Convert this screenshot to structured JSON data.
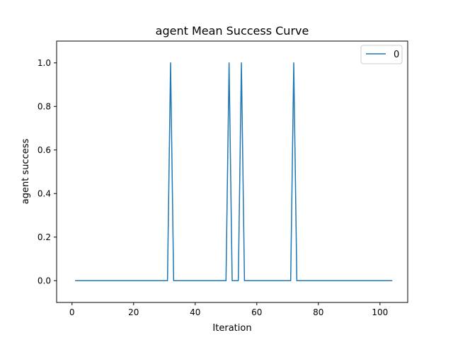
{
  "chart_data": {
    "type": "line",
    "title": "agent Mean Success Curve",
    "xlabel": "Iteration",
    "ylabel": "agent success",
    "xlim": [
      -5,
      109
    ],
    "ylim": [
      -0.1,
      1.1
    ],
    "xticks": [
      0,
      20,
      40,
      60,
      80,
      100
    ],
    "yticks": [
      0.0,
      0.2,
      0.4,
      0.6,
      0.8,
      1.0
    ],
    "xtick_labels": [
      "0",
      "20",
      "40",
      "60",
      "80",
      "100"
    ],
    "ytick_labels": [
      "0.0",
      "0.2",
      "0.4",
      "0.6",
      "0.8",
      "1.0"
    ],
    "legend_position": "top-right",
    "series": [
      {
        "name": "0",
        "color": "#1f77b4",
        "x": [
          1,
          31,
          32,
          33,
          50,
          51,
          52,
          54,
          55,
          56,
          71,
          72,
          73,
          104
        ],
        "y": [
          0,
          0,
          1,
          0,
          0,
          1,
          0,
          0,
          1,
          0,
          0,
          1,
          0,
          0
        ]
      }
    ]
  }
}
